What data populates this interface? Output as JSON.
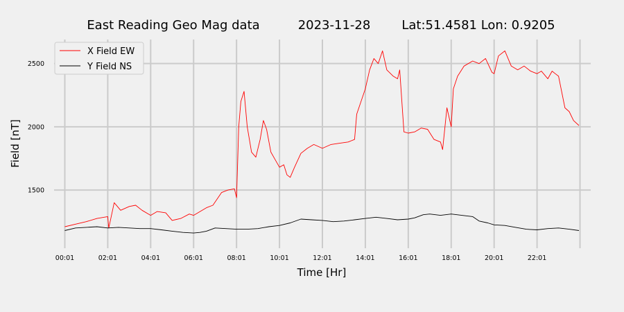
{
  "chart_data": {
    "type": "line",
    "title_parts": {
      "name": "East Reading Geo Mag data",
      "date": "2023-11-28",
      "location": "Lat:51.4581  Lon: 0.9205"
    },
    "xlabel": "Time  [Hr]",
    "ylabel": "Field  [nT]",
    "x_unit": "hours",
    "xlim": [
      -0.5,
      24.5
    ],
    "ylim": [
      1040,
      2690
    ],
    "x_ticks": [
      {
        "value": 0,
        "label": "00:01"
      },
      {
        "value": 2,
        "label": "02:01"
      },
      {
        "value": 4,
        "label": "04:01"
      },
      {
        "value": 6,
        "label": "06:01"
      },
      {
        "value": 8,
        "label": "08:01"
      },
      {
        "value": 10,
        "label": "10:01"
      },
      {
        "value": 12,
        "label": "12:01"
      },
      {
        "value": 14,
        "label": "14:01"
      },
      {
        "value": 16,
        "label": "16:01"
      },
      {
        "value": 18,
        "label": "18:01"
      },
      {
        "value": 20,
        "label": "20:01"
      },
      {
        "value": 22,
        "label": "22:01"
      }
    ],
    "y_ticks": [
      {
        "value": 1500,
        "label": "1500"
      },
      {
        "value": 2000,
        "label": "2000"
      },
      {
        "value": 2500,
        "label": "2500"
      }
    ],
    "grid": true,
    "legend_position": "top-left",
    "series": [
      {
        "name": "X Field EW",
        "color": "#ff0000",
        "x": [
          0,
          0.5,
          1,
          1.5,
          2,
          2.05,
          2.3,
          2.6,
          3,
          3.3,
          3.6,
          4,
          4.3,
          4.7,
          5,
          5.4,
          5.8,
          6,
          6.3,
          6.6,
          6.9,
          7.3,
          7.6,
          7.9,
          8.0,
          8.1,
          8.2,
          8.35,
          8.5,
          8.7,
          8.9,
          9.1,
          9.25,
          9.4,
          9.6,
          9.8,
          10.0,
          10.2,
          10.35,
          10.5,
          10.7,
          11.0,
          11.3,
          11.6,
          12.0,
          12.4,
          12.8,
          13.2,
          13.5,
          13.6,
          13.8,
          14.0,
          14.2,
          14.4,
          14.6,
          14.8,
          15.0,
          15.3,
          15.5,
          15.6,
          15.8,
          16.0,
          16.3,
          16.6,
          16.9,
          17.2,
          17.5,
          17.6,
          17.8,
          18.0,
          18.1,
          18.3,
          18.6,
          19.0,
          19.3,
          19.6,
          19.9,
          20.0,
          20.2,
          20.5,
          20.8,
          21.1,
          21.4,
          21.7,
          22.0,
          22.2,
          22.5,
          22.7,
          22.85,
          23.0,
          23.3,
          23.5,
          23.7,
          23.95
        ],
        "y": [
          1210,
          1230,
          1250,
          1275,
          1290,
          1200,
          1400,
          1340,
          1370,
          1380,
          1340,
          1300,
          1330,
          1320,
          1260,
          1275,
          1310,
          1300,
          1330,
          1360,
          1380,
          1480,
          1500,
          1510,
          1440,
          2000,
          2200,
          2280,
          2000,
          1800,
          1760,
          1900,
          2050,
          1980,
          1800,
          1740,
          1680,
          1700,
          1620,
          1600,
          1680,
          1790,
          1830,
          1860,
          1830,
          1860,
          1870,
          1880,
          1900,
          2100,
          2200,
          2300,
          2450,
          2540,
          2500,
          2600,
          2450,
          2400,
          2380,
          2450,
          1960,
          1950,
          1960,
          1990,
          1980,
          1900,
          1880,
          1820,
          2150,
          2000,
          2300,
          2400,
          2480,
          2520,
          2500,
          2540,
          2430,
          2420,
          2560,
          2600,
          2480,
          2450,
          2480,
          2440,
          2420,
          2440,
          2380,
          2440,
          2420,
          2400,
          2150,
          2120,
          2050,
          2010
        ]
      },
      {
        "name": "Y Field NS",
        "color": "#000000",
        "x": [
          0,
          0.5,
          1,
          1.5,
          2,
          2.5,
          3,
          3.5,
          4,
          4.5,
          5,
          5.5,
          6,
          6.3,
          6.6,
          7,
          7.5,
          8,
          8.5,
          9,
          9.5,
          10,
          10.5,
          11,
          11.5,
          12,
          12.5,
          13,
          13.5,
          14,
          14.5,
          15,
          15.5,
          16,
          16.3,
          16.7,
          17,
          17.5,
          18,
          18.5,
          19,
          19.3,
          19.7,
          20,
          20.5,
          21,
          21.5,
          22,
          22.5,
          23,
          23.5,
          23.95
        ],
        "y": [
          1180,
          1200,
          1205,
          1210,
          1200,
          1205,
          1200,
          1195,
          1195,
          1185,
          1175,
          1165,
          1160,
          1165,
          1175,
          1200,
          1195,
          1190,
          1190,
          1195,
          1210,
          1220,
          1240,
          1270,
          1265,
          1260,
          1250,
          1255,
          1265,
          1275,
          1285,
          1275,
          1265,
          1270,
          1280,
          1305,
          1310,
          1300,
          1310,
          1300,
          1290,
          1255,
          1240,
          1225,
          1220,
          1205,
          1190,
          1185,
          1195,
          1200,
          1190,
          1180
        ]
      }
    ]
  }
}
